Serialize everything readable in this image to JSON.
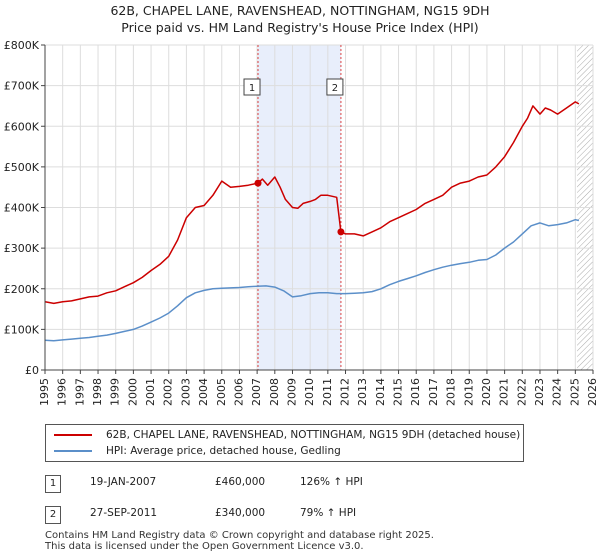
{
  "header": {
    "title_line1": "62B, CHAPEL LANE, RAVENSHEAD, NOTTINGHAM, NG15 9DH",
    "title_line2": "Price paid vs. HM Land Registry's House Price Index (HPI)"
  },
  "chart_data": {
    "type": "line",
    "title": "62B, CHAPEL LANE, RAVENSHEAD, NOTTINGHAM, NG15 9DH Price paid vs. HM Land Registry's House Price Index (HPI)",
    "xlabel": "",
    "ylabel": "",
    "xlim": [
      1995,
      2026
    ],
    "ylim": [
      0,
      800000
    ],
    "grid": true,
    "y_ticks": [
      {
        "value": 0,
        "label": "£0"
      },
      {
        "value": 100000,
        "label": "£100K"
      },
      {
        "value": 200000,
        "label": "£200K"
      },
      {
        "value": 300000,
        "label": "£300K"
      },
      {
        "value": 400000,
        "label": "£400K"
      },
      {
        "value": 500000,
        "label": "£500K"
      },
      {
        "value": 600000,
        "label": "£600K"
      },
      {
        "value": 700000,
        "label": "£700K"
      },
      {
        "value": 800000,
        "label": "£800K"
      }
    ],
    "x_ticks": [
      "1995",
      "1996",
      "1997",
      "1998",
      "1999",
      "2000",
      "2001",
      "2002",
      "2003",
      "2004",
      "2005",
      "2006",
      "2007",
      "2008",
      "2009",
      "2010",
      "2011",
      "2012",
      "2013",
      "2014",
      "2015",
      "2016",
      "2017",
      "2018",
      "2019",
      "2020",
      "2021",
      "2022",
      "2023",
      "2024",
      "2025",
      "2026"
    ],
    "shaded_period": [
      2007.05,
      2011.74
    ],
    "future_hatch_from": 2025.1,
    "series": [
      {
        "name": "62B, CHAPEL LANE, RAVENSHEAD, NOTTINGHAM, NG15 9DH (detached house)",
        "color": "#cc0000",
        "x": [
          1995.0,
          1995.5,
          1996.0,
          1996.5,
          1997.0,
          1997.5,
          1998.0,
          1998.5,
          1999.0,
          1999.5,
          2000.0,
          2000.5,
          2001.0,
          2001.5,
          2002.0,
          2002.5,
          2003.0,
          2003.5,
          2004.0,
          2004.5,
          2005.0,
          2005.5,
          2006.0,
          2006.5,
          2007.05,
          2007.3,
          2007.6,
          2008.0,
          2008.3,
          2008.6,
          2009.0,
          2009.3,
          2009.6,
          2010.0,
          2010.3,
          2010.6,
          2011.0,
          2011.5,
          2011.74,
          2012.0,
          2012.5,
          2013.0,
          2013.5,
          2014.0,
          2014.5,
          2015.0,
          2015.5,
          2016.0,
          2016.5,
          2017.0,
          2017.5,
          2018.0,
          2018.5,
          2019.0,
          2019.5,
          2020.0,
          2020.5,
          2021.0,
          2021.5,
          2022.0,
          2022.3,
          2022.6,
          2023.0,
          2023.3,
          2023.6,
          2024.0,
          2024.5,
          2025.0,
          2025.2
        ],
        "values": [
          168000,
          164000,
          168000,
          170000,
          175000,
          180000,
          182000,
          190000,
          195000,
          205000,
          215000,
          228000,
          245000,
          260000,
          280000,
          320000,
          375000,
          400000,
          405000,
          430000,
          465000,
          450000,
          452000,
          455000,
          460000,
          470000,
          455000,
          475000,
          450000,
          420000,
          400000,
          398000,
          410000,
          415000,
          420000,
          430000,
          430000,
          425000,
          340000,
          335000,
          335000,
          330000,
          340000,
          350000,
          365000,
          375000,
          385000,
          395000,
          410000,
          420000,
          430000,
          450000,
          460000,
          465000,
          475000,
          480000,
          500000,
          525000,
          560000,
          600000,
          620000,
          650000,
          630000,
          645000,
          640000,
          630000,
          645000,
          660000,
          655000
        ]
      },
      {
        "name": "HPI: Average price, detached house, Gedling",
        "color": "#5b8fc9",
        "x": [
          1995.0,
          1995.5,
          1996.0,
          1996.5,
          1997.0,
          1997.5,
          1998.0,
          1998.5,
          1999.0,
          1999.5,
          2000.0,
          2000.5,
          2001.0,
          2001.5,
          2002.0,
          2002.5,
          2003.0,
          2003.5,
          2004.0,
          2004.5,
          2005.0,
          2005.5,
          2006.0,
          2006.5,
          2007.0,
          2007.5,
          2008.0,
          2008.5,
          2009.0,
          2009.5,
          2010.0,
          2010.5,
          2011.0,
          2011.5,
          2012.0,
          2012.5,
          2013.0,
          2013.5,
          2014.0,
          2014.5,
          2015.0,
          2015.5,
          2016.0,
          2016.5,
          2017.0,
          2017.5,
          2018.0,
          2018.5,
          2019.0,
          2019.5,
          2020.0,
          2020.5,
          2021.0,
          2021.5,
          2022.0,
          2022.5,
          2023.0,
          2023.5,
          2024.0,
          2024.5,
          2025.0,
          2025.2
        ],
        "values": [
          73000,
          72000,
          74000,
          76000,
          78000,
          80000,
          83000,
          86000,
          90000,
          95000,
          100000,
          108000,
          118000,
          128000,
          140000,
          158000,
          178000,
          190000,
          196000,
          200000,
          201000,
          202000,
          203000,
          205000,
          206000,
          207000,
          204000,
          195000,
          180000,
          183000,
          188000,
          190000,
          190000,
          188000,
          188000,
          189000,
          190000,
          193000,
          200000,
          210000,
          218000,
          225000,
          232000,
          240000,
          247000,
          253000,
          258000,
          262000,
          265000,
          270000,
          272000,
          283000,
          300000,
          315000,
          335000,
          355000,
          362000,
          355000,
          358000,
          362000,
          370000,
          368000
        ]
      }
    ],
    "sales": [
      {
        "marker": "1",
        "x": 2007.05,
        "value": 460000
      },
      {
        "marker": "2",
        "x": 2011.74,
        "value": 340000
      }
    ]
  },
  "legend": {
    "property_label": "62B, CHAPEL LANE, RAVENSHEAD, NOTTINGHAM, NG15 9DH (detached house)",
    "hpi_label": "HPI: Average price, detached house, Gedling",
    "property_color": "#cc0000",
    "hpi_color": "#5b8fc9"
  },
  "sales_table": [
    {
      "marker": "1",
      "date": "19-JAN-2007",
      "price": "£460,000",
      "hpi_change": "126% ↑ HPI"
    },
    {
      "marker": "2",
      "date": "27-SEP-2011",
      "price": "£340,000",
      "hpi_change": "79% ↑ HPI"
    }
  ],
  "footer": {
    "line1": "Contains HM Land Registry data © Crown copyright and database right 2025.",
    "line2": "This data is licensed under the Open Government Licence v3.0."
  }
}
